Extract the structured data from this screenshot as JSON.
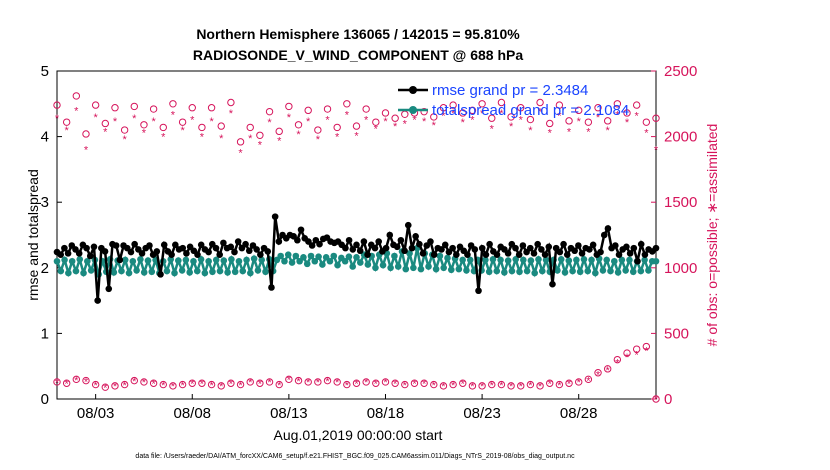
{
  "chart_data": {
    "type": "line",
    "title": "Northern Hemisphere 136065 / 142015 = 95.810%",
    "subtitle": "RADIOSONDE_V_WIND_COMPONENT @ 688 hPa",
    "xlabel": "Aug.01,2019 00:00:00 start",
    "ylabel_left": "rmse and totalspread",
    "ylabel_right": "# of obs: o=possible; ∗=assimilated",
    "footer": "data file: /Users/raeder/DAI/ATM_forcXX/CAM6_setup/f.e21.FHIST_BGC.f09_025.CAM6assim.011/Diags_NTrS_2019-08/obs_diag_output.nc",
    "x_tick_labels": [
      "08/03",
      "08/08",
      "08/13",
      "08/18",
      "08/23",
      "08/28"
    ],
    "x_tick_days": [
      3,
      8,
      13,
      18,
      23,
      28
    ],
    "x_range_days": [
      1.0,
      32.0
    ],
    "ylim_left": [
      0,
      5
    ],
    "y_ticks_left": [
      "0",
      "1",
      "2",
      "3",
      "4",
      "5"
    ],
    "ylim_right": [
      0,
      2500
    ],
    "y_ticks_right": [
      "0",
      "500",
      "1000",
      "1500",
      "2000",
      "2500"
    ],
    "legend": [
      "rmse grand pr = 2.3484",
      "totalspread grand pr = 2.1084"
    ],
    "colors": {
      "rmse": "#000000",
      "spread": "#1a8a80",
      "obs": "#d6145b",
      "legend_text": "#1a44ff"
    },
    "series": [
      {
        "name": "rmse",
        "axis": "left",
        "values": [
          2.24,
          2.2,
          2.3,
          2.22,
          2.34,
          2.28,
          2.22,
          2.35,
          2.3,
          2.18,
          2.32,
          1.5,
          2.3,
          2.25,
          1.68,
          2.36,
          2.34,
          2.12,
          2.34,
          2.3,
          2.24,
          2.36,
          2.28,
          2.22,
          2.3,
          2.34,
          2.2,
          2.25,
          1.9,
          2.35,
          2.25,
          2.2,
          2.35,
          2.28,
          2.3,
          2.22,
          2.32,
          2.26,
          2.2,
          2.35,
          2.28,
          2.24,
          2.36,
          2.3,
          2.2,
          2.38,
          2.3,
          2.32,
          2.24,
          2.4,
          2.3,
          2.36,
          2.26,
          2.34,
          2.28,
          2.2,
          2.3,
          2.25,
          1.7,
          2.78,
          2.4,
          2.5,
          2.45,
          2.5,
          2.48,
          2.42,
          2.58,
          2.45,
          2.4,
          2.34,
          2.42,
          2.36,
          2.44,
          2.46,
          2.4,
          2.38,
          2.4,
          2.35,
          2.3,
          2.42,
          2.28,
          2.35,
          2.26,
          2.4,
          2.2,
          2.35,
          2.3,
          2.4,
          2.25,
          2.3,
          2.5,
          2.35,
          2.32,
          2.42,
          2.26,
          2.65,
          2.3,
          2.48,
          2.36,
          2.22,
          2.34,
          2.4,
          2.2,
          2.3,
          2.28,
          2.35,
          2.24,
          2.3,
          2.2,
          2.32,
          2.26,
          2.2,
          2.34,
          2.28,
          1.65,
          2.3,
          2.2,
          2.36,
          2.25,
          2.2,
          2.32,
          2.28,
          2.22,
          2.36,
          2.3,
          2.2,
          2.34,
          2.24,
          2.3,
          2.22,
          2.36,
          2.28,
          2.2,
          2.32,
          1.75,
          2.3,
          2.24,
          2.36,
          2.2,
          2.3,
          2.26,
          2.34,
          2.22,
          2.3,
          2.28,
          2.35,
          2.2,
          2.24,
          2.5,
          2.6,
          2.3,
          2.34,
          2.2,
          2.28,
          2.32,
          2.22,
          2.3,
          2.1,
          2.36,
          2.2,
          2.28,
          2.25,
          2.3
        ]
      },
      {
        "name": "totalspread",
        "axis": "left",
        "values": [
          2.1,
          1.95,
          2.12,
          1.92,
          2.1,
          1.95,
          2.13,
          1.92,
          2.1,
          1.96,
          2.12,
          1.9,
          2.1,
          1.94,
          2.13,
          1.93,
          2.11,
          1.95,
          2.12,
          1.92,
          2.1,
          1.96,
          2.13,
          1.93,
          2.11,
          1.94,
          2.12,
          1.92,
          2.1,
          1.95,
          2.13,
          1.92,
          2.11,
          1.96,
          2.12,
          1.93,
          2.1,
          1.95,
          2.13,
          1.92,
          2.1,
          1.94,
          2.12,
          1.95,
          2.11,
          1.93,
          2.13,
          1.94,
          2.1,
          1.95,
          2.12,
          1.92,
          2.14,
          1.96,
          2.12,
          1.94,
          2.13,
          1.95,
          2.12,
          2.18,
          2.1,
          2.2,
          2.08,
          2.18,
          2.1,
          2.16,
          2.06,
          2.18,
          2.1,
          2.17,
          2.05,
          2.16,
          2.1,
          2.18,
          2.04,
          2.15,
          2.1,
          2.17,
          2.02,
          2.16,
          2.08,
          2.2,
          2.05,
          2.18,
          2.0,
          2.2,
          2.04,
          2.22,
          2.0,
          2.18,
          2.02,
          2.25,
          1.98,
          2.22,
          2.0,
          2.3,
          1.98,
          2.22,
          2.02,
          2.2,
          1.98,
          2.18,
          2.0,
          2.15,
          1.97,
          2.14,
          1.98,
          2.12,
          1.96,
          2.12,
          1.95,
          2.12,
          1.96,
          2.12,
          1.94,
          2.13,
          1.95,
          2.12,
          1.93,
          2.11,
          1.95,
          2.13,
          1.94,
          2.12,
          1.95,
          2.11,
          1.92,
          2.13,
          1.95,
          2.12,
          1.94,
          2.12,
          1.96,
          2.13,
          1.93,
          2.11,
          1.95,
          2.12,
          1.94,
          2.13,
          1.95,
          2.12,
          1.92,
          2.14,
          1.96,
          2.12,
          1.95,
          2.1,
          1.93,
          2.12,
          1.96,
          2.12,
          1.94,
          2.1,
          1.95,
          2.12,
          1.96,
          2.1,
          2.1
        ]
      },
      {
        "name": "possible",
        "axis": "right",
        "days": [
          1.0,
          1.5,
          2.0,
          2.5,
          3.0,
          3.5,
          4.0,
          4.5,
          5.0,
          5.5,
          6.0,
          6.5,
          7.0,
          7.5,
          8.0,
          8.5,
          9.0,
          9.5,
          10.0,
          10.5,
          11.0,
          11.5,
          12.0,
          12.5,
          13.0,
          13.5,
          14.0,
          14.5,
          15.0,
          15.5,
          16.0,
          16.5,
          17.0,
          17.5,
          18.0,
          18.5,
          19.0,
          19.5,
          20.0,
          20.5,
          21.0,
          21.5,
          22.0,
          22.5,
          23.0,
          23.5,
          24.0,
          24.5,
          25.0,
          25.5,
          26.0,
          26.5,
          27.0,
          27.5,
          28.0,
          28.5,
          29.0,
          29.5,
          30.0,
          30.5,
          31.0,
          31.5,
          32.0
        ],
        "upper": [
          2240,
          2110,
          2310,
          2020,
          2240,
          2100,
          2220,
          2050,
          2230,
          2090,
          2210,
          2070,
          2250,
          2110,
          2220,
          2070,
          2220,
          2080,
          2260,
          1960,
          2070,
          2010,
          2190,
          2040,
          2230,
          2090,
          2200,
          2050,
          2210,
          2070,
          2250,
          2080,
          2210,
          2110,
          2180,
          2140,
          2170,
          2180,
          2190,
          2150,
          2220,
          2240,
          2180,
          2200,
          2250,
          2140,
          2260,
          2150,
          2220,
          2130,
          2260,
          2100,
          2240,
          2120,
          2200,
          2110,
          2220,
          2120,
          2250,
          2180,
          2240,
          2110,
          2140
        ],
        "lower": [
          130,
          120,
          150,
          140,
          110,
          90,
          100,
          110,
          140,
          130,
          120,
          110,
          100,
          110,
          120,
          120,
          110,
          100,
          120,
          110,
          130,
          120,
          130,
          110,
          150,
          140,
          130,
          130,
          140,
          130,
          110,
          120,
          130,
          120,
          130,
          120,
          110,
          120,
          120,
          110,
          100,
          110,
          120,
          100,
          100,
          110,
          110,
          100,
          100,
          110,
          100,
          120,
          110,
          120,
          130,
          150,
          200,
          230,
          300,
          350,
          380,
          400,
          0
        ]
      },
      {
        "name": "assimilated",
        "axis": "right",
        "days": [
          1.0,
          1.5,
          2.0,
          2.5,
          3.0,
          3.5,
          4.0,
          4.5,
          5.0,
          5.5,
          6.0,
          6.5,
          7.0,
          7.5,
          8.0,
          8.5,
          9.0,
          9.5,
          10.0,
          10.5,
          11.0,
          11.5,
          12.0,
          12.5,
          13.0,
          13.5,
          14.0,
          14.5,
          15.0,
          15.5,
          16.0,
          16.5,
          17.0,
          17.5,
          18.0,
          18.5,
          19.0,
          19.5,
          20.0,
          20.5,
          21.0,
          21.5,
          22.0,
          22.5,
          23.0,
          23.5,
          24.0,
          24.5,
          25.0,
          25.5,
          26.0,
          26.5,
          27.0,
          27.5,
          28.0,
          28.5,
          29.0,
          29.5,
          30.0,
          30.5,
          31.0,
          31.5,
          32.0
        ],
        "upper": [
          2140,
          2050,
          2200,
          1900,
          2150,
          2040,
          2120,
          1980,
          2140,
          2030,
          2120,
          2000,
          2170,
          2050,
          2130,
          2000,
          2120,
          1990,
          2180,
          1880,
          1990,
          1940,
          2110,
          1970,
          2150,
          2020,
          2120,
          1980,
          2130,
          2000,
          2170,
          2010,
          2130,
          2060,
          2120,
          2080,
          2100,
          2130,
          2120,
          2090,
          2160,
          2180,
          2110,
          2130,
          2180,
          2060,
          2180,
          2080,
          2130,
          2050,
          2190,
          2030,
          2160,
          2040,
          2120,
          2040,
          2150,
          2050,
          2170,
          2110,
          2160,
          2030,
          1900
        ],
        "lower": [
          125,
          118,
          145,
          135,
          108,
          88,
          98,
          108,
          138,
          128,
          118,
          108,
          98,
          108,
          118,
          118,
          108,
          98,
          118,
          108,
          128,
          118,
          128,
          108,
          148,
          138,
          128,
          128,
          138,
          128,
          108,
          118,
          128,
          118,
          128,
          118,
          108,
          118,
          118,
          108,
          98,
          108,
          118,
          98,
          98,
          108,
          108,
          98,
          98,
          108,
          98,
          118,
          108,
          118,
          128,
          140,
          185,
          220,
          280,
          320,
          340,
          370,
          0
        ]
      }
    ]
  }
}
